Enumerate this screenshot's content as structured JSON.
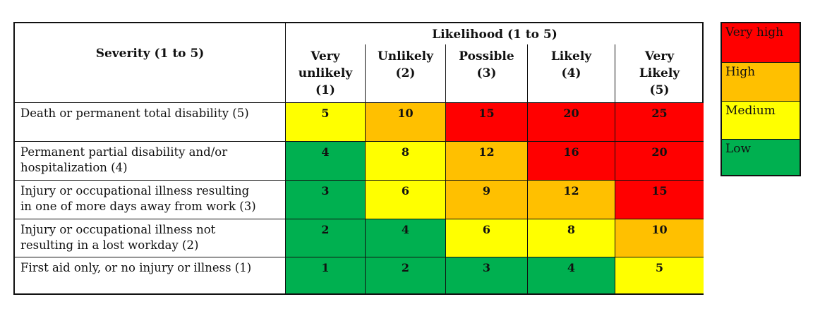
{
  "colors": {
    "very_high": "#ff0000",
    "high": "#ffc000",
    "medium": "#ffff00",
    "low": "#00b050"
  },
  "header": {
    "severity": "Severity (1 to 5)",
    "likelihood": "Likelihood (1 to 5)",
    "columns": [
      {
        "line1": "Very",
        "line2": "unlikely",
        "line3": "(1)"
      },
      {
        "line1": "Unlikely",
        "line2": "(2)",
        "line3": ""
      },
      {
        "line1": "Possible",
        "line2": "(3)",
        "line3": ""
      },
      {
        "line1": "Likely",
        "line2": "(4)",
        "line3": ""
      },
      {
        "line1": "Very",
        "line2": "Likely",
        "line3": "(5)"
      }
    ]
  },
  "rows": [
    {
      "line1": "Death or permanent total disability (5)",
      "line2": "",
      "values": [
        "5",
        "10",
        "15",
        "20",
        "25"
      ],
      "levels": [
        "medium",
        "high",
        "very_high",
        "very_high",
        "very_high"
      ]
    },
    {
      "line1": "Permanent partial disability and/or",
      "line2": "hospitalization (4)",
      "values": [
        "4",
        "8",
        "12",
        "16",
        "20"
      ],
      "levels": [
        "low",
        "medium",
        "high",
        "very_high",
        "very_high"
      ]
    },
    {
      "line1": "Injury or occupational illness resulting",
      "line2": "in one of more days away from work (3)",
      "values": [
        "3",
        "6",
        "9",
        "12",
        "15"
      ],
      "levels": [
        "low",
        "medium",
        "high",
        "high",
        "very_high"
      ]
    },
    {
      "line1": "Injury or occupational illness not",
      "line2": "resulting in a lost workday (2)",
      "values": [
        "2",
        "4",
        "6",
        "8",
        "10"
      ],
      "levels": [
        "low",
        "low",
        "medium",
        "medium",
        "high"
      ]
    },
    {
      "line1": "First aid only, or no injury or illness (1)",
      "line2": "",
      "values": [
        "1",
        "2",
        "3",
        "4",
        "5"
      ],
      "levels": [
        "low",
        "low",
        "low",
        "low",
        "medium"
      ]
    }
  ],
  "legend": [
    {
      "label": "Very high",
      "level": "very_high"
    },
    {
      "label": "High",
      "level": "high"
    },
    {
      "label": "Medium",
      "level": "medium"
    },
    {
      "label": "Low",
      "level": "low"
    }
  ]
}
